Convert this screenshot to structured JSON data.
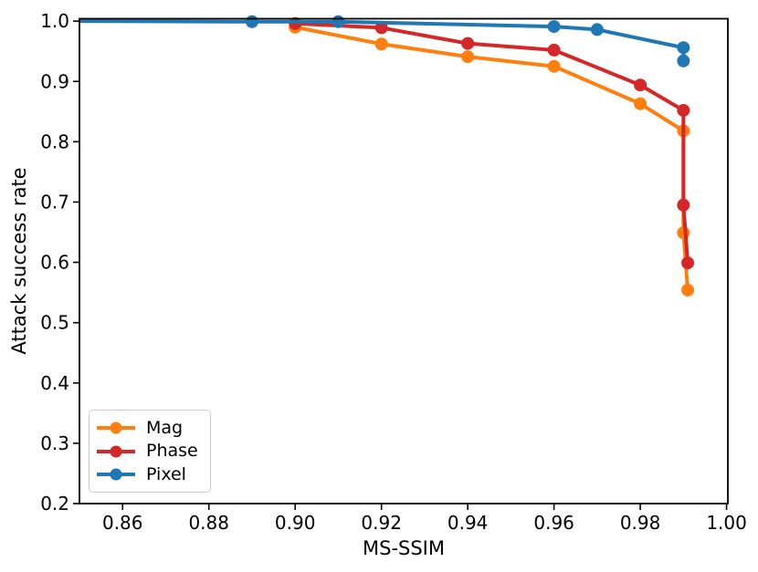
{
  "chart_data": {
    "type": "line",
    "title": "",
    "xlabel": "MS-SSIM",
    "ylabel": "Attack success rate",
    "xlim": [
      0.85,
      1.0003
    ],
    "ylim": [
      0.2,
      1.004
    ],
    "grid": false,
    "legend_position": "lower left",
    "xticks": {
      "values": [
        0.86,
        0.88,
        0.9,
        0.92,
        0.94,
        0.96,
        0.98,
        1.0
      ],
      "labels": [
        "0.86",
        "0.88",
        "0.90",
        "0.92",
        "0.94",
        "0.96",
        "0.98",
        "1.00"
      ]
    },
    "yticks": {
      "values": [
        0.2,
        0.3,
        0.4,
        0.5,
        0.6,
        0.7,
        0.8,
        0.9,
        1.0
      ],
      "labels": [
        "0.2",
        "0.3",
        "0.4",
        "0.5",
        "0.6",
        "0.7",
        "0.8",
        "0.9",
        "1.0"
      ]
    },
    "series": [
      {
        "name": "Mag",
        "color": "#ff7f0e",
        "x": [
          0.9,
          0.92,
          0.94,
          0.96,
          0.98,
          0.99,
          0.99,
          0.991
        ],
        "y": [
          0.99,
          0.962,
          0.941,
          0.925,
          0.863,
          0.818,
          0.649,
          0.554
        ],
        "marker_start": 0
      },
      {
        "name": "Phase",
        "color": "#d62728",
        "x": [
          0.9,
          0.92,
          0.94,
          0.96,
          0.98,
          0.99,
          0.99,
          0.991
        ],
        "y": [
          0.996,
          0.989,
          0.963,
          0.952,
          0.894,
          0.852,
          0.695,
          0.599
        ],
        "marker_start": 0
      },
      {
        "name": "Pixel",
        "color": "#1f77b4",
        "x": [
          0.85,
          0.89,
          0.91,
          0.96,
          0.97,
          0.99,
          0.99
        ],
        "y": [
          1.0,
          0.999,
          0.999,
          0.991,
          0.986,
          0.956,
          0.934
        ],
        "marker_start": 1
      }
    ]
  }
}
